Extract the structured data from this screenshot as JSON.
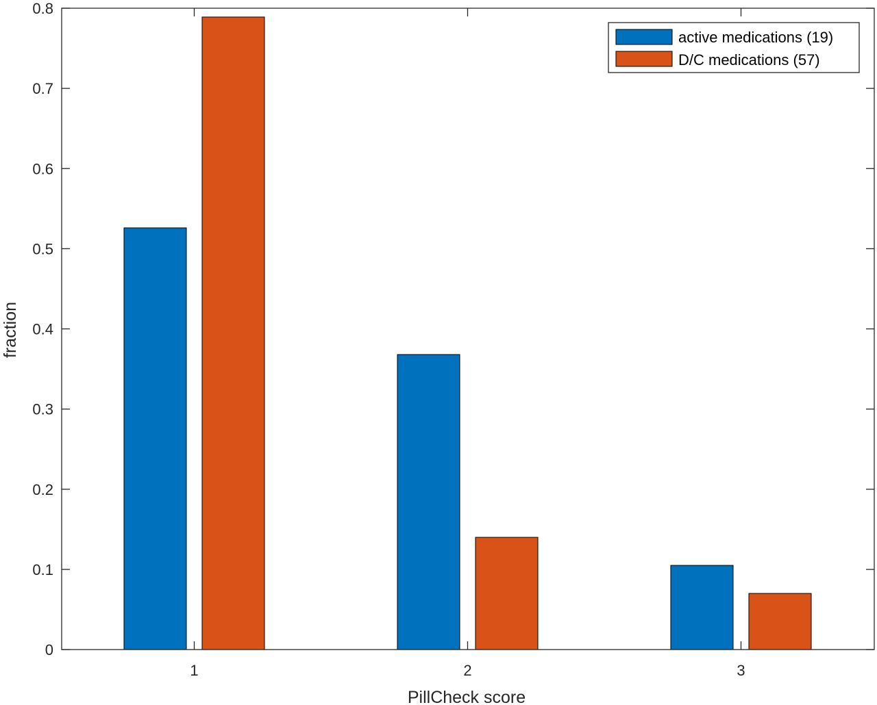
{
  "chart_data": {
    "type": "bar",
    "title": "",
    "xlabel": "PillCheck score",
    "ylabel": "fraction",
    "categories": [
      "1",
      "2",
      "3"
    ],
    "series": [
      {
        "name": "active medications (19)",
        "values": [
          0.526,
          0.368,
          0.105
        ],
        "color": "#0072BD"
      },
      {
        "name": "D/C medications (57)",
        "values": [
          0.789,
          0.14,
          0.07
        ],
        "color": "#D95319"
      }
    ],
    "ylim": [
      0,
      0.8
    ],
    "yticks": [
      "0",
      "0.1",
      "0.2",
      "0.3",
      "0.4",
      "0.5",
      "0.6",
      "0.7",
      "0.8"
    ],
    "grid": false,
    "legend_position": "top-right"
  }
}
